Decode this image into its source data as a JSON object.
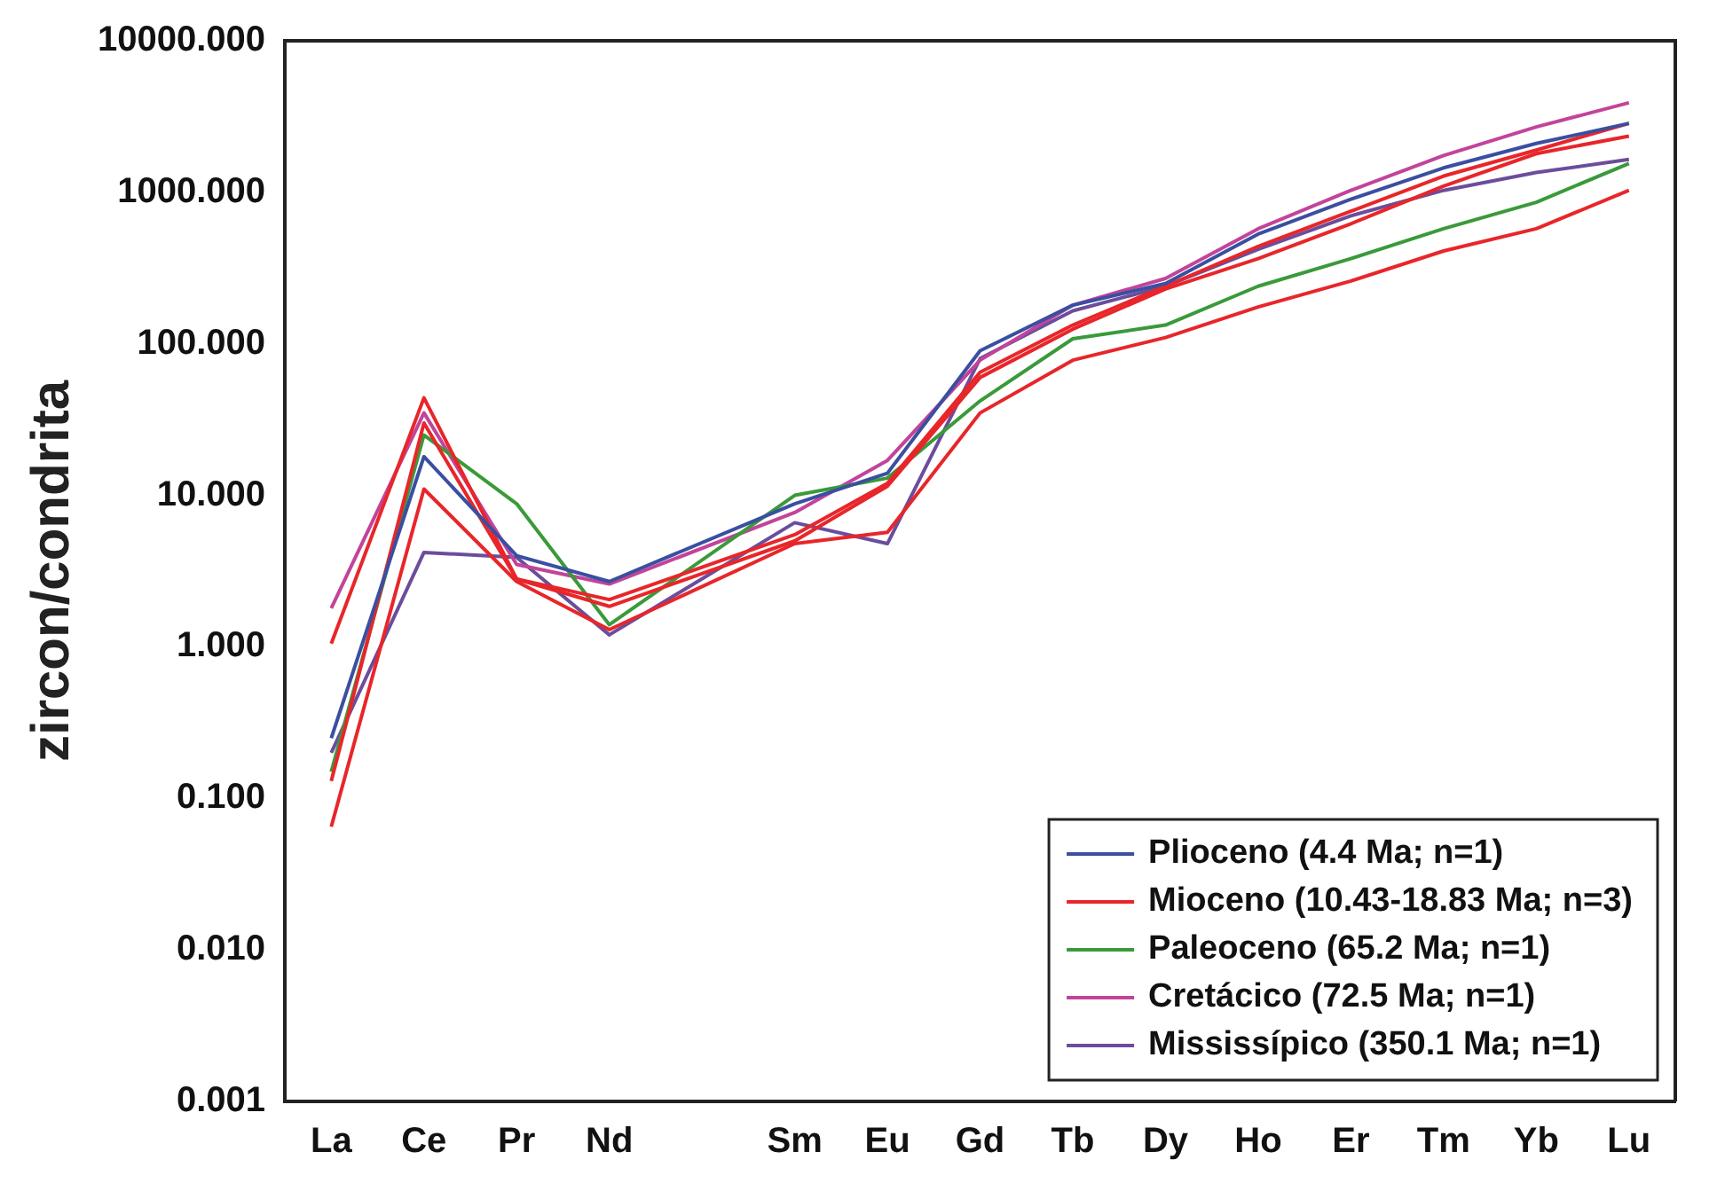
{
  "chart_data": {
    "type": "line",
    "ylabel": "zircon/condrita",
    "categories": [
      "La",
      "Ce",
      "Pr",
      "Nd",
      null,
      "Sm",
      "Eu",
      "Gd",
      "Tb",
      "Dy",
      "Ho",
      "Er",
      "Tm",
      "Yb",
      "Lu"
    ],
    "log": "y",
    "ylim": [
      0.001,
      10000
    ],
    "yticks": [
      {
        "value": 0.001,
        "label": "0.001"
      },
      {
        "value": 0.01,
        "label": "0.010"
      },
      {
        "value": 0.1,
        "label": "0.100"
      },
      {
        "value": 1,
        "label": "1.000"
      },
      {
        "value": 10,
        "label": "10.000"
      },
      {
        "value": 100,
        "label": "100.000"
      },
      {
        "value": 1000,
        "label": "1000.000"
      },
      {
        "value": 10000,
        "label": "10000.000"
      }
    ],
    "grid": false,
    "legend": "bottom right",
    "marker": "none",
    "line_style": "solid",
    "series": [
      {
        "name": "Plioceno (4.4 Ma; n=1)",
        "color": "#3a4fa0",
        "values": [
          0.25,
          18,
          4,
          2.7,
          null,
          8.8,
          14,
          90,
          180,
          250,
          530,
          900,
          1450,
          2100,
          2850
        ]
      },
      {
        "name": "Mioceno (10.43-18.83 Ma; n=3)",
        "color": "#e8262a",
        "values": [
          1.05,
          44,
          2.8,
          2.05,
          null,
          5.5,
          12,
          65,
          133,
          240,
          440,
          750,
          1280,
          1900,
          2850
        ]
      },
      {
        "color": "#e8262a",
        "values": [
          0.13,
          30,
          2.8,
          1.85,
          null,
          5,
          11.5,
          60,
          125,
          230,
          365,
          620,
          1100,
          1800,
          2350
        ]
      },
      {
        "color": "#e8262a",
        "values": [
          0.065,
          11,
          2.7,
          1.3,
          null,
          4.8,
          5.7,
          35,
          78,
          110,
          175,
          260,
          410,
          575,
          1030
        ]
      },
      {
        "name": "Paleoceno (65.2 Ma; n=1)",
        "color": "#3a9a3a",
        "values": [
          0.15,
          25,
          8.8,
          1.4,
          null,
          10,
          13,
          42,
          108,
          133,
          240,
          365,
          575,
          860,
          1550
        ]
      },
      {
        "name": "Cretácico (72.5 Ma; n=1)",
        "color": "#c2449a",
        "values": [
          1.8,
          35,
          3.5,
          2.6,
          null,
          7.7,
          17,
          78,
          180,
          270,
          575,
          1030,
          1750,
          2700,
          3900
        ]
      },
      {
        "name": "Mississípico (350.1 Ma; n=1)",
        "color": "#6b4d9c",
        "values": [
          0.2,
          4.2,
          3.9,
          1.2,
          null,
          6.6,
          4.8,
          80,
          165,
          240,
          420,
          700,
          1030,
          1350,
          1650
        ]
      }
    ]
  }
}
